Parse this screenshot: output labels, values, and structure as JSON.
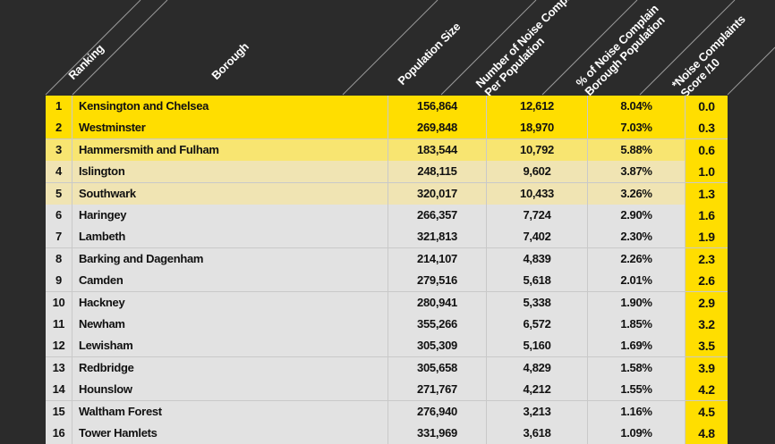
{
  "headers": {
    "ranking": "Ranking",
    "borough": "Borough",
    "population": "Population Size",
    "noise_per_pop": "Number of Noise Compl\nPer Population",
    "pct_noise": "% of Noise Complain\nBorough Population",
    "score": "*Noise Complaints\nScore /10"
  },
  "colors": {
    "background": "#2b2b2b",
    "score_column": "#ffde00",
    "tier1": "#ffde00",
    "tier2": "#f8e571",
    "tier3": "#f0e4b3",
    "tier4": "#e2e2e2"
  },
  "chart_data": {
    "type": "table",
    "columns": [
      "Ranking",
      "Borough",
      "Population Size",
      "Number of Noise Complaints Per Population",
      "% of Noise Complaints Borough Population",
      "*Noise Complaints Score /10"
    ],
    "rows": [
      {
        "rank": "1",
        "borough": "Kensington and Chelsea",
        "population": "156,864",
        "complaints": "12,612",
        "pct": "8.04%",
        "score": "0.0",
        "tier": 1
      },
      {
        "rank": "2",
        "borough": "Westminster",
        "population": "269,848",
        "complaints": "18,970",
        "pct": "7.03%",
        "score": "0.3",
        "tier": 1
      },
      {
        "rank": "3",
        "borough": "Hammersmith and Fulham",
        "population": "183,544",
        "complaints": "10,792",
        "pct": "5.88%",
        "score": "0.6",
        "tier": 2
      },
      {
        "rank": "4",
        "borough": "Islington",
        "population": "248,115",
        "complaints": "9,602",
        "pct": "3.87%",
        "score": "1.0",
        "tier": 3
      },
      {
        "rank": "5",
        "borough": "Southwark",
        "population": "320,017",
        "complaints": "10,433",
        "pct": "3.26%",
        "score": "1.3",
        "tier": 3
      },
      {
        "rank": "6",
        "borough": "Haringey",
        "population": "266,357",
        "complaints": "7,724",
        "pct": "2.90%",
        "score": "1.6",
        "tier": 4
      },
      {
        "rank": "7",
        "borough": "Lambeth",
        "population": "321,813",
        "complaints": "7,402",
        "pct": "2.30%",
        "score": "1.9",
        "tier": 4
      },
      {
        "rank": "8",
        "borough": "Barking and Dagenham",
        "population": "214,107",
        "complaints": "4,839",
        "pct": "2.26%",
        "score": "2.3",
        "tier": 4
      },
      {
        "rank": "9",
        "borough": "Camden",
        "population": "279,516",
        "complaints": "5,618",
        "pct": "2.01%",
        "score": "2.6",
        "tier": 4
      },
      {
        "rank": "10",
        "borough": "Hackney",
        "population": "280,941",
        "complaints": "5,338",
        "pct": "1.90%",
        "score": "2.9",
        "tier": 4
      },
      {
        "rank": "11",
        "borough": "Newham",
        "population": "355,266",
        "complaints": "6,572",
        "pct": "1.85%",
        "score": "3.2",
        "tier": 4
      },
      {
        "rank": "12",
        "borough": "Lewisham",
        "population": "305,309",
        "complaints": "5,160",
        "pct": "1.69%",
        "score": "3.5",
        "tier": 4
      },
      {
        "rank": "13",
        "borough": "Redbridge",
        "population": "305,658",
        "complaints": "4,829",
        "pct": "1.58%",
        "score": "3.9",
        "tier": 4
      },
      {
        "rank": "14",
        "borough": "Hounslow",
        "population": "271,767",
        "complaints": "4,212",
        "pct": "1.55%",
        "score": "4.2",
        "tier": 4
      },
      {
        "rank": "15",
        "borough": "Waltham Forest",
        "population": "276,940",
        "complaints": "3,213",
        "pct": "1.16%",
        "score": "4.5",
        "tier": 4
      },
      {
        "rank": "16",
        "borough": "Tower Hamlets",
        "population": "331,969",
        "complaints": "3,618",
        "pct": "1.09%",
        "score": "4.8",
        "tier": 4
      }
    ]
  }
}
